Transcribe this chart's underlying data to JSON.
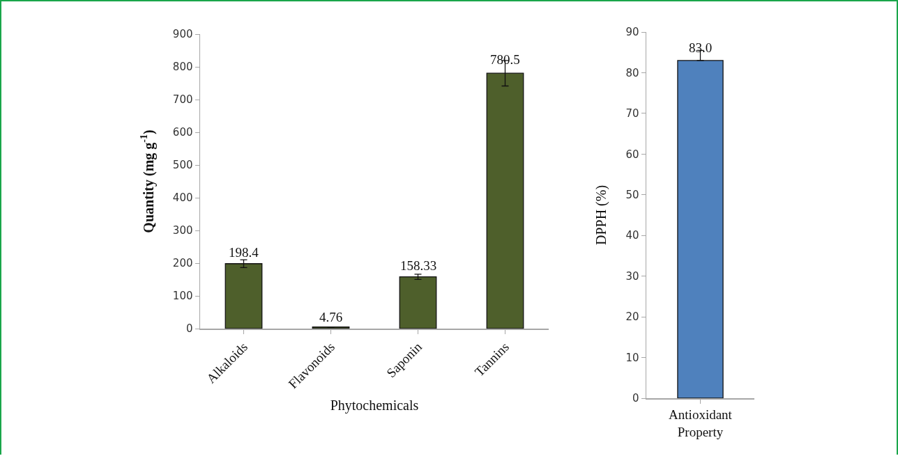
{
  "chart_data": [
    {
      "type": "bar",
      "xlabel": "Phytochemicals",
      "ylabel": "Quantity (mg g$^{-1}$)",
      "categories": [
        "Alkaloids",
        "Flavonoids",
        "Saponin",
        "Tannins"
      ],
      "values": [
        198.4,
        4.76,
        158.33,
        780.5
      ],
      "errors": [
        12,
        null,
        8,
        39
      ],
      "value_labels": [
        "198.4",
        "4.76",
        "158.33",
        "780.5"
      ],
      "color": "#4e5f2b",
      "ylim": [
        0,
        900
      ],
      "yticks": [
        0,
        100,
        200,
        300,
        400,
        500,
        600,
        700,
        800,
        900
      ]
    },
    {
      "type": "bar",
      "ylabel": "DPPH (%)",
      "categories": [
        "Antioxidant Property"
      ],
      "values": [
        83.0
      ],
      "errors": [
        [
          83.0,
          85.5
        ]
      ],
      "value_labels": [
        "83.0"
      ],
      "color": "#4f81bd",
      "ylim": [
        0,
        90
      ],
      "yticks": [
        0,
        10,
        20,
        30,
        40,
        50,
        60,
        70,
        80,
        90
      ]
    }
  ]
}
